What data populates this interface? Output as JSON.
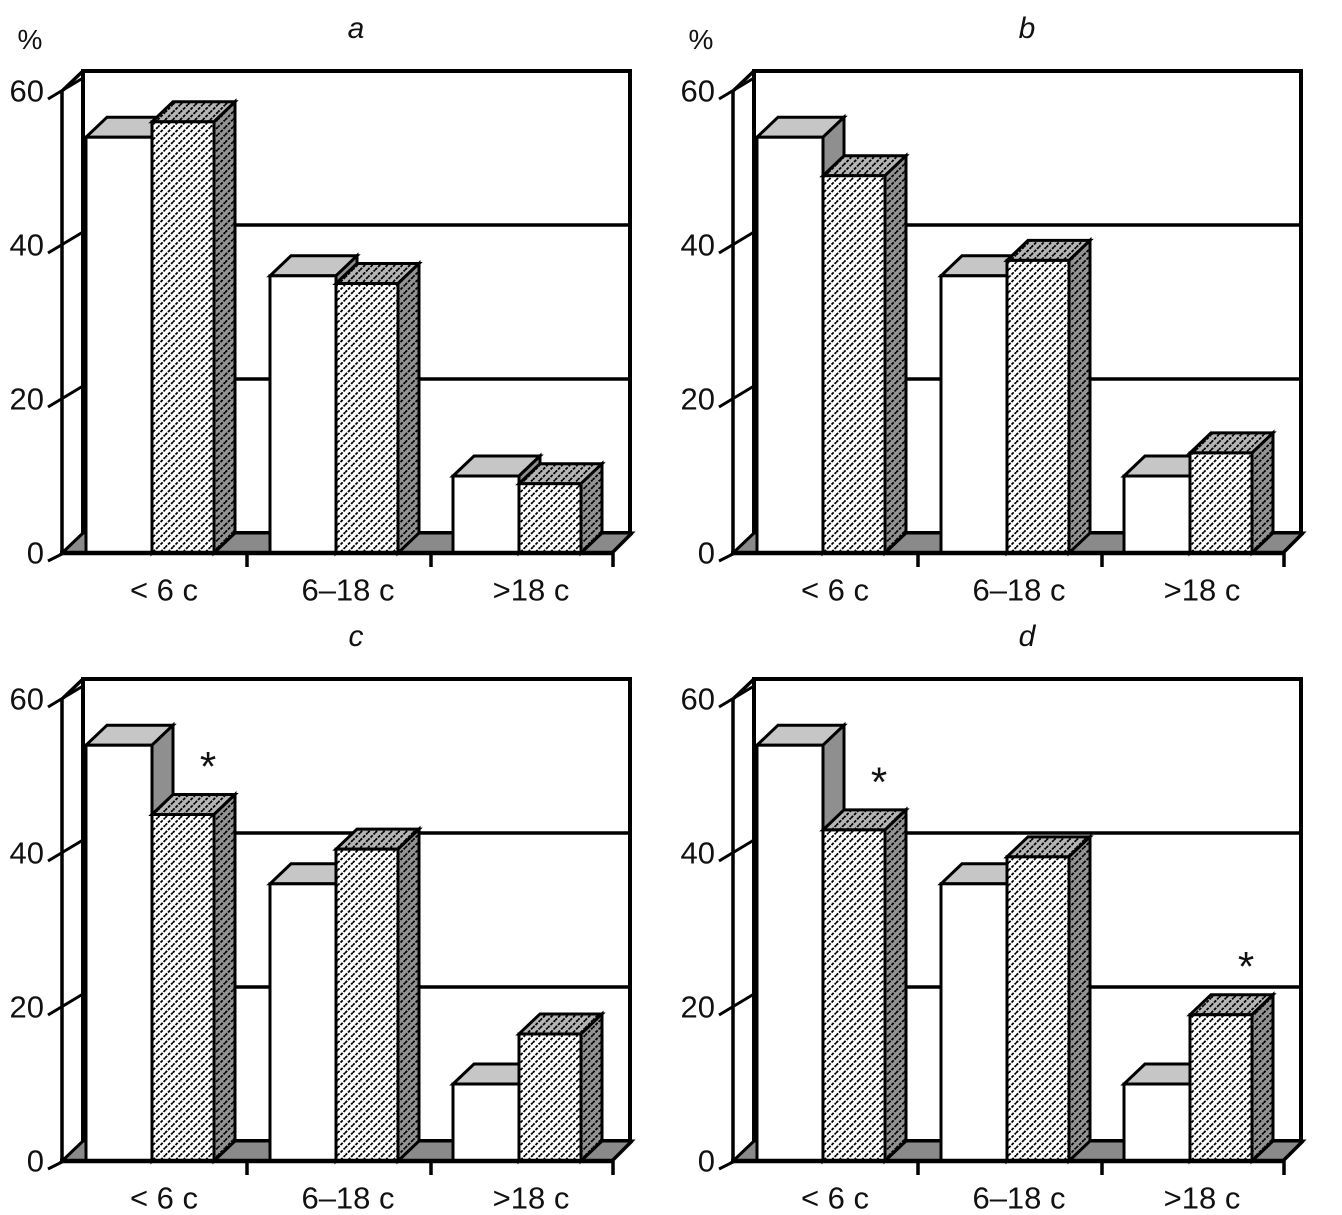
{
  "figure": {
    "kind": "2x2 grid of 3D grouped bar charts",
    "significance_symbol": "*"
  },
  "colors": {
    "background": "#ffffff",
    "line": "#000000",
    "bar_face": "#ffffff",
    "open_top": "#c6c6c6",
    "open_side": "#8f8f8f",
    "hatch_top": "#b5b5b5",
    "hatch_side": "#939393",
    "floor": "#8a8a8a",
    "text": "#111111"
  },
  "chart_data": [
    {
      "type": "bar",
      "panel": "a",
      "title": "a",
      "y_axis_label": "%",
      "categories": [
        "< 6 c",
        "6–18 c",
        ">18 c"
      ],
      "y_ticks": [
        0,
        20,
        40,
        60
      ],
      "ylim": [
        0,
        63
      ],
      "grid": "horizontal lines at 20, 40, 60 on back wall",
      "legend": "none",
      "series": [
        {
          "name": "open",
          "values": [
            54,
            36,
            10
          ]
        },
        {
          "name": "hatched",
          "values": [
            56,
            35,
            9
          ]
        }
      ],
      "significance_marks": []
    },
    {
      "type": "bar",
      "panel": "b",
      "title": "b",
      "y_axis_label": "%",
      "categories": [
        "< 6 c",
        "6–18 c",
        ">18 c"
      ],
      "y_ticks": [
        0,
        20,
        40,
        60
      ],
      "ylim": [
        0,
        63
      ],
      "grid": "horizontal lines at 20, 40, 60 on back wall",
      "legend": "none",
      "series": [
        {
          "name": "open",
          "values": [
            54,
            36,
            10
          ]
        },
        {
          "name": "hatched",
          "values": [
            49,
            38,
            13
          ]
        }
      ],
      "significance_marks": []
    },
    {
      "type": "bar",
      "panel": "c",
      "title": "c",
      "y_axis_label": "",
      "categories": [
        "< 6 c",
        "6–18 c",
        ">18 c"
      ],
      "y_ticks": [
        0,
        20,
        40,
        60
      ],
      "ylim": [
        0,
        63
      ],
      "grid": "horizontal lines at 20, 40, 60 on back wall",
      "legend": "none",
      "series": [
        {
          "name": "open",
          "values": [
            54,
            36,
            10
          ]
        },
        {
          "name": "hatched",
          "values": [
            45,
            40.5,
            16.5
          ]
        }
      ],
      "significance_marks": [
        {
          "series": "hatched",
          "category": 0,
          "label": "*"
        }
      ]
    },
    {
      "type": "bar",
      "panel": "d",
      "title": "d",
      "y_axis_label": "",
      "categories": [
        "< 6 c",
        "6–18 c",
        ">18 c"
      ],
      "y_ticks": [
        0,
        20,
        40,
        60
      ],
      "ylim": [
        0,
        63
      ],
      "grid": "horizontal lines at 20, 40, 60 on back wall",
      "legend": "none",
      "series": [
        {
          "name": "open",
          "values": [
            54,
            36,
            10
          ]
        },
        {
          "name": "hatched",
          "values": [
            43,
            39.5,
            19
          ]
        }
      ],
      "significance_marks": [
        {
          "series": "hatched",
          "category": 0,
          "label": "*"
        },
        {
          "series": "hatched",
          "category": 2,
          "label": "*"
        }
      ]
    }
  ]
}
